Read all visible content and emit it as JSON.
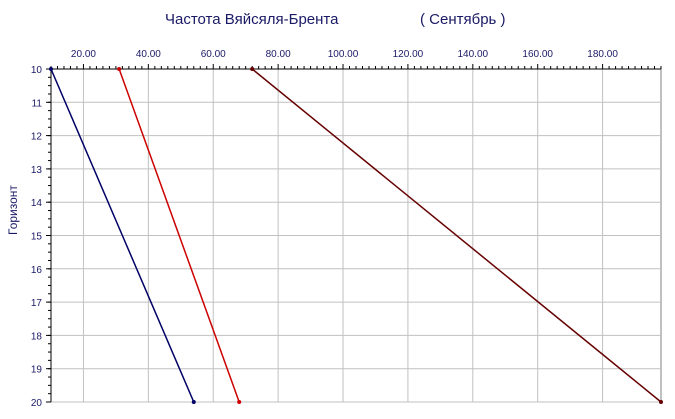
{
  "chart_data": {
    "type": "line",
    "title": "Частота Вяйсяля-Брента",
    "subtitle": "( Сентябрь )",
    "xlabel": "",
    "ylabel": "Горизонт",
    "xlim": [
      10,
      198
    ],
    "ylim": [
      10,
      20
    ],
    "y_inverted": true,
    "x_axis_position": "top",
    "x_ticks": [
      "20.00",
      "40.00",
      "60.00",
      "80.00",
      "100.00",
      "120.00",
      "140.00",
      "160.00",
      "180.00"
    ],
    "y_ticks": [
      "10",
      "11",
      "12",
      "13",
      "14",
      "15",
      "16",
      "17",
      "18",
      "19",
      "20"
    ],
    "grid": true,
    "legend": "none",
    "series": [
      {
        "color": "#000066",
        "points": [
          [
            10,
            10
          ],
          [
            54,
            20
          ]
        ]
      },
      {
        "color": "#cc0000",
        "points": [
          [
            31,
            10
          ],
          [
            68,
            20
          ]
        ]
      },
      {
        "color": "#660000",
        "points": [
          [
            72,
            10
          ],
          [
            198,
            20
          ]
        ]
      }
    ]
  }
}
